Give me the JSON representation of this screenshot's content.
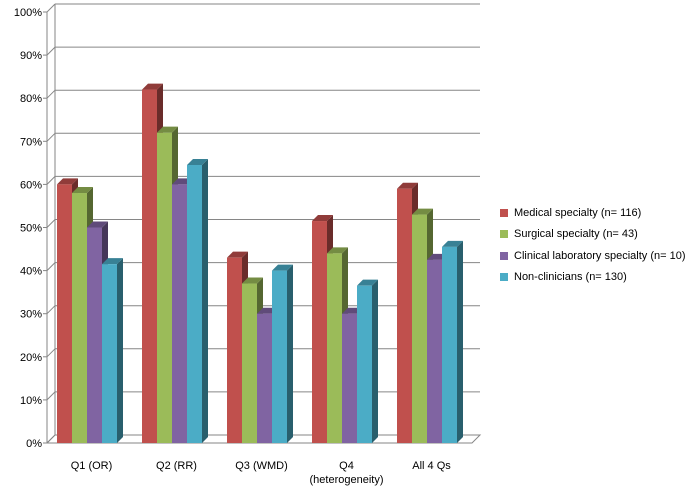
{
  "chart_data": {
    "type": "bar",
    "style": "3d-clustered-column",
    "categories": [
      "Q1 (OR)",
      "Q2 (RR)",
      "Q3 (WMD)",
      "Q4\n(heterogeneity)",
      "All 4 Qs"
    ],
    "series": [
      {
        "name": "Medical specialty (n= 116)",
        "values": [
          60,
          82,
          43,
          51.5,
          59
        ],
        "color": "#c0504d"
      },
      {
        "name": "Surgical specialty (n= 43)",
        "values": [
          58,
          72,
          37,
          44,
          53
        ],
        "color": "#9bbb59"
      },
      {
        "name": "Clinical laboratory specialty (n= 10)",
        "values": [
          50,
          60,
          30,
          30,
          42.5
        ],
        "color": "#8064a2"
      },
      {
        "name": "Non-clinicians (n= 130)",
        "values": [
          41.5,
          64.5,
          40,
          36.5,
          45.5
        ],
        "color": "#4bacc6"
      }
    ],
    "y_ticks": [
      "0%",
      "10%",
      "20%",
      "30%",
      "40%",
      "50%",
      "60%",
      "70%",
      "80%",
      "90%",
      "100%"
    ],
    "ylim": [
      0,
      100
    ],
    "grid": true,
    "legend_position": "right",
    "title": "",
    "xlabel": "",
    "ylabel": ""
  }
}
